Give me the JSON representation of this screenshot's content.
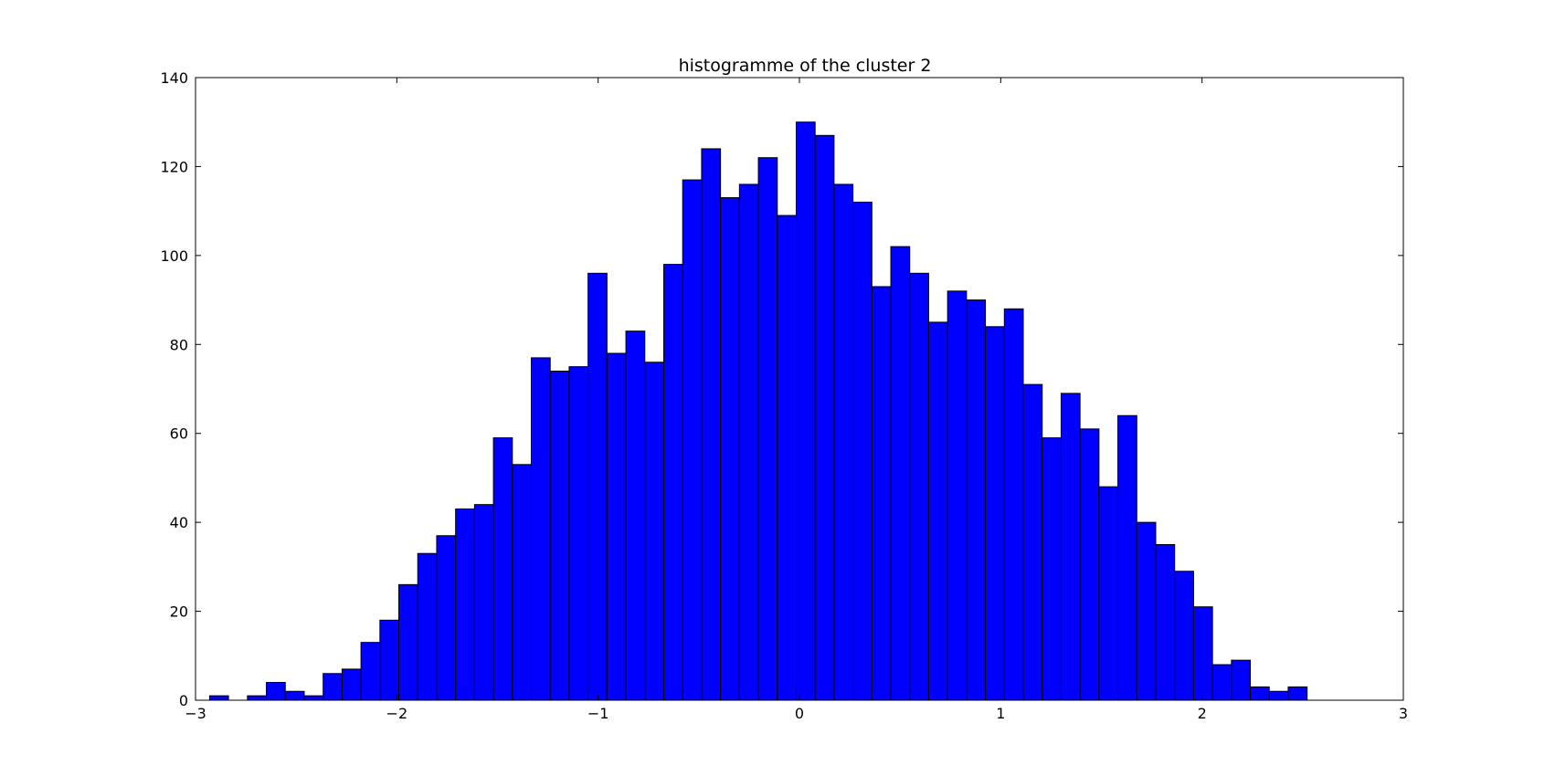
{
  "chart_data": {
    "type": "bar",
    "title": "histogramme of the cluster 2",
    "xlabel": "",
    "ylabel": "",
    "xlim": [
      -3,
      3
    ],
    "ylim": [
      0,
      140
    ],
    "x_ticks": [
      -3,
      -2,
      -1,
      0,
      1,
      2,
      3
    ],
    "x_tick_labels": [
      "−3",
      "−2",
      "−1",
      "0",
      "1",
      "2",
      "3"
    ],
    "y_ticks": [
      0,
      20,
      40,
      60,
      80,
      100,
      120,
      140
    ],
    "y_tick_labels": [
      "0",
      "20",
      "40",
      "60",
      "80",
      "100",
      "120",
      "140"
    ],
    "grid": false,
    "bar_color": "#0000ff",
    "edge_color": "#000000",
    "bin_start": -2.93,
    "bin_width": 0.094,
    "values": [
      1,
      0,
      1,
      4,
      2,
      1,
      6,
      7,
      13,
      18,
      26,
      33,
      37,
      43,
      44,
      59,
      53,
      77,
      74,
      75,
      96,
      78,
      83,
      76,
      98,
      117,
      124,
      113,
      116,
      122,
      109,
      130,
      127,
      116,
      112,
      93,
      102,
      96,
      85,
      92,
      90,
      84,
      88,
      71,
      59,
      69,
      61,
      48,
      64,
      40,
      35,
      29,
      21,
      8,
      9,
      3,
      2,
      3
    ]
  }
}
